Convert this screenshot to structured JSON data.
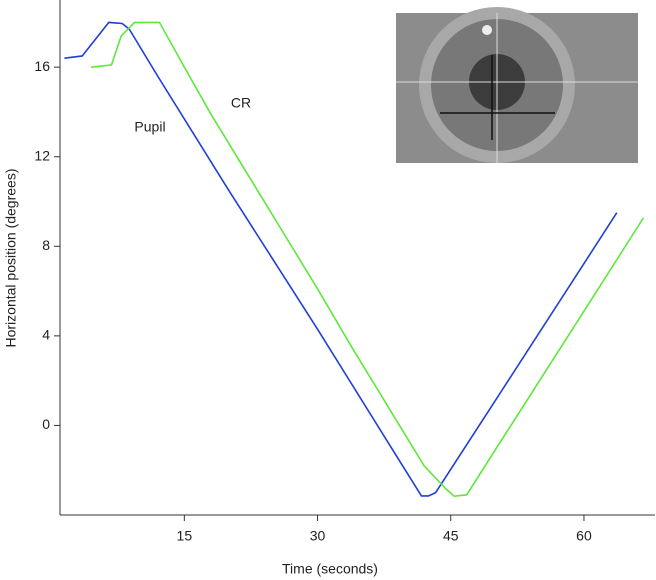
{
  "chart_data": {
    "type": "line",
    "xlabel": "Time (seconds)",
    "ylabel": "Horizontal position (degrees)",
    "xlim": [
      1,
      68
    ],
    "xticks": [
      15,
      30,
      45,
      60
    ],
    "ylim": [
      -4,
      19
    ],
    "yticks": [
      0,
      4,
      8,
      12,
      16
    ],
    "series": [
      {
        "name": "Pupil",
        "color": "#1f3fd6",
        "x": [
          1.5,
          3.5,
          4.5,
          6.5,
          8.0,
          8.8,
          12.0,
          20.0,
          30.0,
          38.0,
          41.7,
          42.5,
          43.3,
          50.0,
          58.0,
          63.7
        ],
        "values": [
          16.4,
          16.5,
          17.0,
          18.0,
          17.95,
          17.7,
          15.6,
          10.5,
          4.3,
          -0.8,
          -3.15,
          -3.15,
          -3.0,
          1.1,
          6.0,
          9.5
        ]
      },
      {
        "name": "CR",
        "color": "#5ee83a",
        "x": [
          4.5,
          6.8,
          7.9,
          9.4,
          12.2,
          15.0,
          18.0,
          22.0,
          26.0,
          30.0,
          34.0,
          38.0,
          42.0,
          44.5,
          45.4,
          46.8,
          50.0,
          55.0,
          60.0,
          66.7
        ],
        "values": [
          16.0,
          16.1,
          17.4,
          18.0,
          18.0,
          16.0,
          13.9,
          11.3,
          8.7,
          6.1,
          3.4,
          0.8,
          -1.8,
          -2.85,
          -3.16,
          -3.1,
          -1.1,
          2.0,
          5.1,
          9.27
        ]
      }
    ]
  }
}
